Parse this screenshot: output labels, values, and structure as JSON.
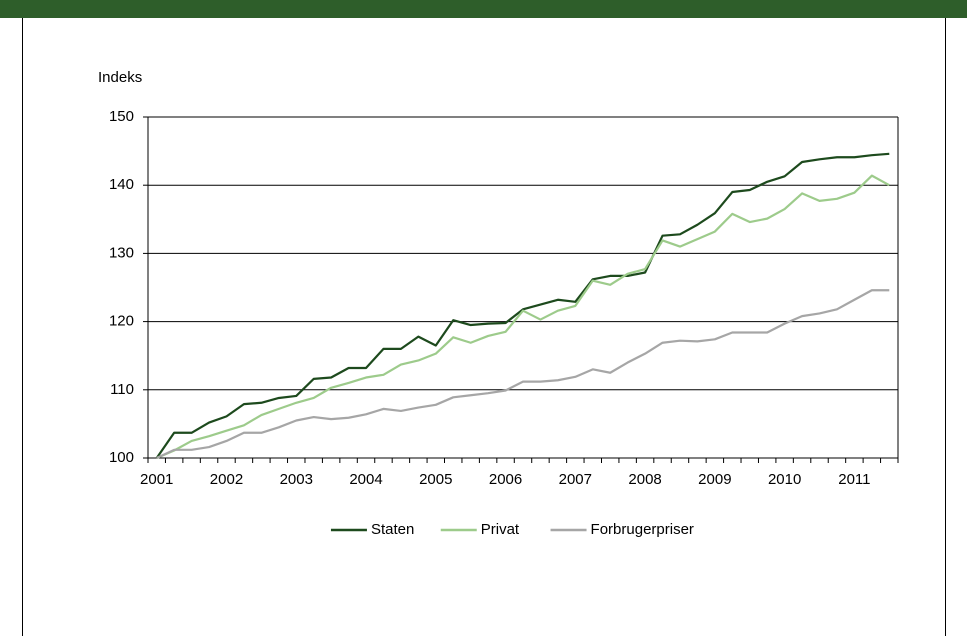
{
  "chart_data": {
    "type": "line",
    "y_label": "Indeks",
    "categories": [
      "2001",
      null,
      null,
      null,
      "2002",
      null,
      null,
      null,
      "2003",
      null,
      null,
      null,
      "2004",
      null,
      null,
      null,
      "2005",
      null,
      null,
      null,
      "2006",
      null,
      null,
      null,
      "2007",
      null,
      null,
      null,
      "2008",
      null,
      null,
      null,
      "2009",
      null,
      null,
      null,
      "2010",
      null,
      null,
      null,
      "2011",
      null,
      null
    ],
    "series": [
      {
        "name": "Staten",
        "color": "#1d4a1d",
        "values": [
          100,
          103.7,
          103.7,
          105.2,
          106.1,
          107.9,
          108.1,
          108.8,
          109.1,
          111.6,
          111.8,
          113.2,
          113.2,
          116.0,
          116.0,
          117.8,
          116.5,
          120.2,
          119.5,
          119.7,
          119.8,
          121.8,
          122.5,
          123.2,
          122.9,
          126.2,
          126.7,
          126.7,
          127.2,
          132.6,
          132.8,
          134.2,
          135.9,
          139.0,
          139.3,
          140.5,
          141.3,
          143.4,
          143.8,
          144.1,
          144.1,
          144.4,
          144.6
        ]
      },
      {
        "name": "Privat",
        "color": "#9dcb8b",
        "values": [
          100,
          101.1,
          102.5,
          103.2,
          104.0,
          104.8,
          106.3,
          107.2,
          108.1,
          108.8,
          110.3,
          111.0,
          111.8,
          112.2,
          113.7,
          114.3,
          115.3,
          117.7,
          116.9,
          117.9,
          118.5,
          121.6,
          120.3,
          121.6,
          122.3,
          126.0,
          125.4,
          127.0,
          127.7,
          131.9,
          131.0,
          132.1,
          133.2,
          135.8,
          134.6,
          135.1,
          136.5,
          138.8,
          137.7,
          138.0,
          138.9,
          141.4,
          140.0
        ]
      },
      {
        "name": "Forbrugerpriser",
        "color": "#a6a6a6",
        "values": [
          100,
          101.2,
          101.2,
          101.6,
          102.5,
          103.7,
          103.7,
          104.5,
          105.5,
          106.0,
          105.7,
          105.9,
          106.4,
          107.2,
          106.9,
          107.4,
          107.8,
          108.9,
          109.2,
          109.5,
          109.9,
          111.2,
          111.2,
          111.4,
          111.9,
          113.0,
          112.5,
          114.0,
          115.3,
          116.9,
          117.2,
          117.1,
          117.4,
          118.4,
          118.4,
          118.4,
          119.7,
          120.8,
          121.2,
          121.8,
          123.2,
          124.6,
          124.6
        ]
      }
    ],
    "ylim": [
      100,
      150
    ],
    "yticks": [
      100,
      110,
      120,
      130,
      140,
      150
    ],
    "grid": true,
    "legend": "bottom"
  }
}
